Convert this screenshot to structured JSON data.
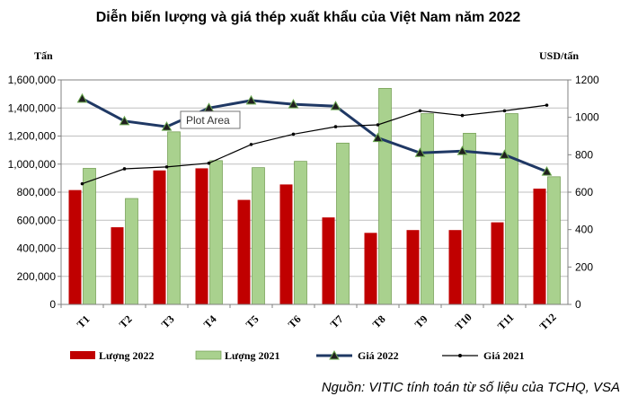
{
  "chart_data": {
    "type": "bar",
    "title": "Diễn biến lượng và giá thép xuất khẩu của Việt Nam năm 2022",
    "y_left_label": "Tấn",
    "y_right_label": "USD/tấn",
    "categories": [
      "T1",
      "T2",
      "T3",
      "T4",
      "T5",
      "T6",
      "T7",
      "T8",
      "T9",
      "T10",
      "T11",
      "T12"
    ],
    "y_left_lim": [
      0,
      1600000
    ],
    "y_left_ticks": [
      "0",
      "200,000",
      "400,000",
      "600,000",
      "800,000",
      "1,000,000",
      "1,200,000",
      "1,400,000",
      "1,600,000"
    ],
    "y_right_lim": [
      0,
      1200
    ],
    "y_right_ticks": [
      "0",
      "200",
      "400",
      "600",
      "800",
      "1000",
      "1200"
    ],
    "grid": true,
    "legend_position": "bottom",
    "series": [
      {
        "name": "Lượng 2022",
        "type": "bar",
        "axis": "left",
        "color": "#c00000",
        "values": [
          815000,
          550000,
          955000,
          970000,
          745000,
          855000,
          620000,
          510000,
          530000,
          530000,
          585000,
          825000
        ]
      },
      {
        "name": "Lượng 2021",
        "type": "bar",
        "axis": "left",
        "color": "#a9d18e",
        "values": [
          970000,
          755000,
          1230000,
          1025000,
          975000,
          1020000,
          1150000,
          1540000,
          1360000,
          1220000,
          1360000,
          910000
        ]
      },
      {
        "name": "Giá 2022",
        "type": "line",
        "axis": "right",
        "color": "#1f3864",
        "marker": "triangle",
        "values": [
          1100,
          980,
          950,
          1050,
          1090,
          1070,
          1060,
          890,
          810,
          820,
          800,
          710
        ]
      },
      {
        "name": "Giá 2021",
        "type": "line",
        "axis": "right",
        "color": "#000000",
        "marker": "dot",
        "values": [
          645,
          725,
          735,
          755,
          855,
          910,
          950,
          960,
          1035,
          1010,
          1035,
          1065
        ]
      }
    ],
    "tooltip": "Plot Area",
    "source": "Nguồn: VITIC tính toán từ số liệu của TCHQ, VSA"
  }
}
